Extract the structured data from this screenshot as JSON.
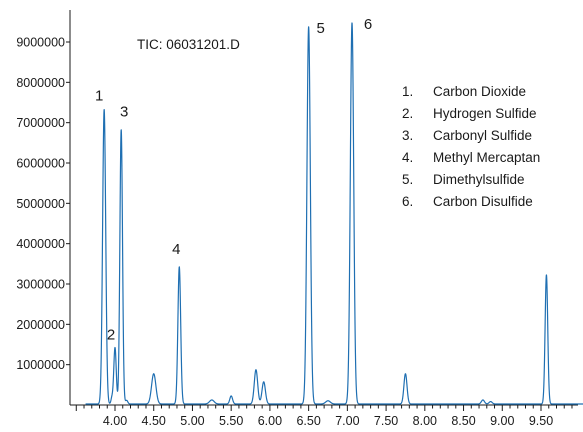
{
  "chart_data": {
    "type": "line",
    "title": "",
    "xlabel": "",
    "ylabel": "",
    "annotation": "TIC: 06031201.D",
    "xlim": [
      3.4,
      10.05
    ],
    "ylim": [
      0,
      9500000
    ],
    "grid": false,
    "line_color": "#1f6fb2",
    "x_ticks": [
      4.0,
      4.5,
      5.0,
      5.5,
      6.0,
      6.5,
      7.0,
      7.5,
      8.0,
      8.5,
      9.0,
      9.5
    ],
    "x_tick_labels": [
      "4.00",
      "4.50",
      "5.00",
      "5.50",
      "6.00",
      "6.50",
      "7.00",
      "7.50",
      "8.00",
      "8.50",
      "9.00",
      "9.50"
    ],
    "y_ticks": [
      1000000,
      2000000,
      3000000,
      4000000,
      5000000,
      6000000,
      7000000,
      8000000,
      9000000
    ],
    "y_tick_labels": [
      "1000000",
      "2000000",
      "3000000",
      "4000000",
      "5000000",
      "6000000",
      "7000000",
      "8000000",
      "9000000"
    ],
    "peaks": [
      {
        "label": "1",
        "rt": 3.86,
        "height": 7300000,
        "width": 0.02
      },
      {
        "label": "2",
        "rt": 4.0,
        "height": 1400000,
        "width": 0.016
      },
      {
        "label": "3",
        "rt": 4.08,
        "height": 6800000,
        "width": 0.017
      },
      {
        "label": "4",
        "rt": 4.83,
        "height": 3400000,
        "width": 0.018
      },
      {
        "label": "5",
        "rt": 6.5,
        "height": 9350000,
        "width": 0.022
      },
      {
        "label": "6",
        "rt": 7.06,
        "height": 9450000,
        "width": 0.022
      }
    ],
    "minor_peaks": [
      {
        "rt": 3.96,
        "height": 150000,
        "width": 0.012
      },
      {
        "rt": 4.15,
        "height": 90000,
        "width": 0.015
      },
      {
        "rt": 4.5,
        "height": 750000,
        "width": 0.028
      },
      {
        "rt": 5.25,
        "height": 100000,
        "width": 0.03
      },
      {
        "rt": 5.5,
        "height": 200000,
        "width": 0.018
      },
      {
        "rt": 5.82,
        "height": 850000,
        "width": 0.022
      },
      {
        "rt": 5.92,
        "height": 550000,
        "width": 0.022
      },
      {
        "rt": 6.75,
        "height": 80000,
        "width": 0.03
      },
      {
        "rt": 7.75,
        "height": 750000,
        "width": 0.02
      },
      {
        "rt": 8.75,
        "height": 100000,
        "width": 0.02
      },
      {
        "rt": 8.85,
        "height": 60000,
        "width": 0.02
      },
      {
        "rt": 9.57,
        "height": 3200000,
        "width": 0.017
      }
    ],
    "legend": [
      {
        "num": "1.",
        "name": "Carbon Dioxide"
      },
      {
        "num": "2.",
        "name": "Hydrogen Sulfide"
      },
      {
        "num": "3.",
        "name": "Carbonyl Sulfide"
      },
      {
        "num": "4.",
        "name": "Methyl Mercaptan"
      },
      {
        "num": "5.",
        "name": "Dimethylsulfide"
      },
      {
        "num": "6.",
        "name": "Carbon Disulfide"
      }
    ]
  }
}
